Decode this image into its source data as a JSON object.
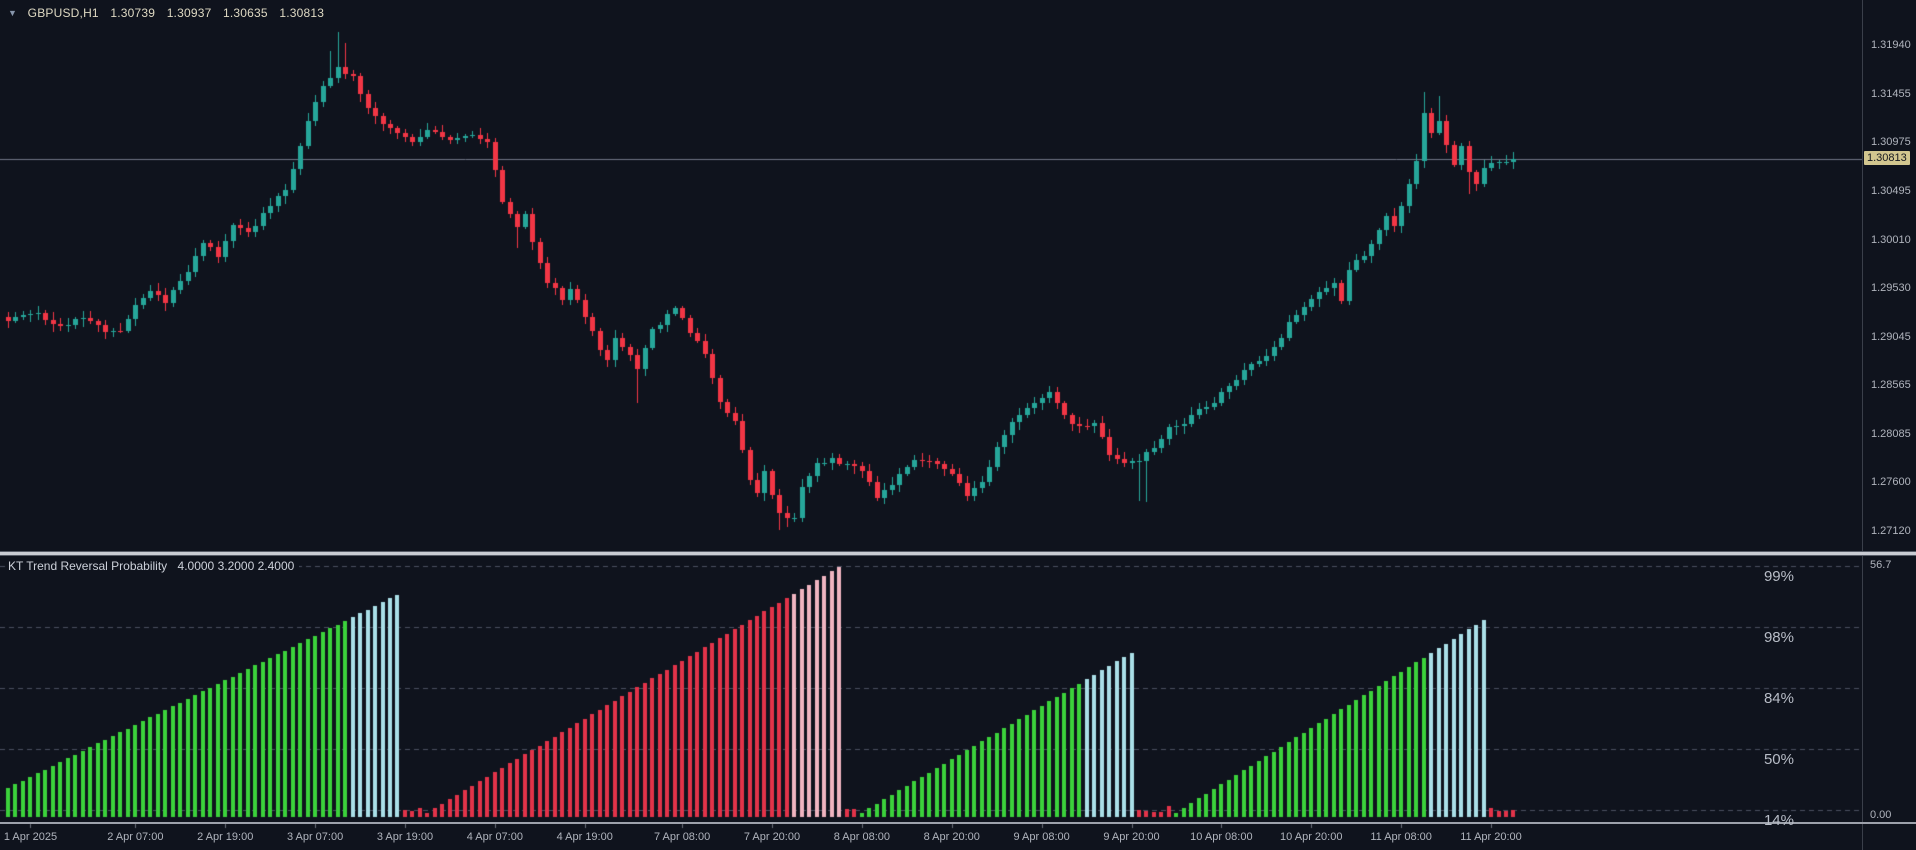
{
  "header": {
    "dropdown_icon": "▼",
    "symbol": "GBPUSD,H1",
    "open": "1.30739",
    "high": "1.30937",
    "low": "1.30635",
    "close": "1.30813"
  },
  "indicator": {
    "name": "KT Trend Reversal Probability",
    "params": "4.0000 3.2000 2.4000",
    "axis_max": "56.7",
    "axis_min": "0.00"
  },
  "price_axis": {
    "current_price_label": "1.30813"
  },
  "colors": {
    "background": "#0f131d",
    "axis_text": "#b0b4bd",
    "symbol_text": "#ded9c3",
    "price_line": "#6f7585",
    "price_tag_bg": "#d2c68f",
    "price_tag_text": "#15181f",
    "separator": "#c9ccd3",
    "level_dash": "#4a5060",
    "level_text": "#b8bdc7",
    "tick_mark": "#6b707b"
  },
  "chart_data": [
    {
      "type": "candlestick",
      "title": "GBPUSD,H1",
      "panel": "price",
      "current_price": 1.30813,
      "ylim": [
        1.2692,
        1.32386
      ],
      "y_ticks": [
        "1.31940",
        "1.31455",
        "1.30975",
        "1.30495",
        "1.30010",
        "1.29530",
        "1.29045",
        "1.28565",
        "1.28085",
        "1.27600",
        "1.27120"
      ],
      "n_candles": 202,
      "x_labels": [
        {
          "i": 3,
          "t": "1 Apr 2025"
        },
        {
          "i": 17,
          "t": "2 Apr 07:00"
        },
        {
          "i": 29,
          "t": "2 Apr 19:00"
        },
        {
          "i": 41,
          "t": "3 Apr 07:00"
        },
        {
          "i": 53,
          "t": "3 Apr 19:00"
        },
        {
          "i": 65,
          "t": "4 Apr 07:00"
        },
        {
          "i": 77,
          "t": "4 Apr 19:00"
        },
        {
          "i": 90,
          "t": "7 Apr 08:00"
        },
        {
          "i": 102,
          "t": "7 Apr 20:00"
        },
        {
          "i": 114,
          "t": "8 Apr 08:00"
        },
        {
          "i": 126,
          "t": "8 Apr 20:00"
        },
        {
          "i": 138,
          "t": "9 Apr 08:00"
        },
        {
          "i": 150,
          "t": "9 Apr 20:00"
        },
        {
          "i": 162,
          "t": "10 Apr 08:00"
        },
        {
          "i": 174,
          "t": "10 Apr 20:00"
        },
        {
          "i": 186,
          "t": "11 Apr 08:00"
        },
        {
          "i": 198,
          "t": "11 Apr 20:00"
        }
      ],
      "close_waypoints": [
        [
          0,
          1.2922
        ],
        [
          4,
          1.2928
        ],
        [
          7,
          1.2916
        ],
        [
          10,
          1.2924
        ],
        [
          13,
          1.2908
        ],
        [
          15,
          1.2912
        ],
        [
          17,
          1.2936
        ],
        [
          19,
          1.2948
        ],
        [
          21,
          1.294
        ],
        [
          24,
          1.297
        ],
        [
          26,
          1.2997
        ],
        [
          28,
          1.2986
        ],
        [
          30,
          1.3015
        ],
        [
          32,
          1.3006
        ],
        [
          35,
          1.3036
        ],
        [
          37,
          1.3052
        ],
        [
          38,
          1.307
        ],
        [
          40,
          1.3118
        ],
        [
          42,
          1.3154
        ],
        [
          44,
          1.3172
        ],
        [
          46,
          1.3162
        ],
        [
          47,
          1.3148
        ],
        [
          48,
          1.313
        ],
        [
          50,
          1.3118
        ],
        [
          52,
          1.3105
        ],
        [
          54,
          1.3098
        ],
        [
          56,
          1.311
        ],
        [
          58,
          1.3102
        ],
        [
          60,
          1.31
        ],
        [
          62,
          1.3103
        ],
        [
          64,
          1.3097
        ],
        [
          65,
          1.3068
        ],
        [
          66,
          1.304
        ],
        [
          68,
          1.3015
        ],
        [
          69,
          1.3027
        ],
        [
          70,
          1.2997
        ],
        [
          72,
          1.296
        ],
        [
          74,
          1.2942
        ],
        [
          75,
          1.2954
        ],
        [
          77,
          1.2924
        ],
        [
          79,
          1.2893
        ],
        [
          80,
          1.2881
        ],
        [
          81,
          1.2905
        ],
        [
          83,
          1.2887
        ],
        [
          84,
          1.2875
        ],
        [
          86,
          1.2911
        ],
        [
          88,
          1.2926
        ],
        [
          89,
          1.2933
        ],
        [
          91,
          1.2911
        ],
        [
          93,
          1.2887
        ],
        [
          95,
          1.2838
        ],
        [
          97,
          1.282
        ],
        [
          99,
          1.2765
        ],
        [
          100,
          1.2747
        ],
        [
          101,
          1.2771
        ],
        [
          103,
          1.2729
        ],
        [
          105,
          1.2723
        ],
        [
          106,
          1.2753
        ],
        [
          108,
          1.2777
        ],
        [
          110,
          1.2783
        ],
        [
          112,
          1.2777
        ],
        [
          114,
          1.2771
        ],
        [
          116,
          1.2747
        ],
        [
          118,
          1.2759
        ],
        [
          120,
          1.2777
        ],
        [
          122,
          1.2783
        ],
        [
          124,
          1.2777
        ],
        [
          126,
          1.2771
        ],
        [
          128,
          1.2747
        ],
        [
          130,
          1.2759
        ],
        [
          132,
          1.2795
        ],
        [
          134,
          1.282
        ],
        [
          136,
          1.2833
        ],
        [
          138,
          1.2845
        ],
        [
          139,
          1.2851
        ],
        [
          141,
          1.2826
        ],
        [
          143,
          1.2814
        ],
        [
          145,
          1.282
        ],
        [
          147,
          1.2789
        ],
        [
          149,
          1.2777
        ],
        [
          151,
          1.2783
        ],
        [
          153,
          1.2795
        ],
        [
          155,
          1.2814
        ],
        [
          157,
          1.282
        ],
        [
          159,
          1.2833
        ],
        [
          161,
          1.2839
        ],
        [
          163,
          1.2857
        ],
        [
          165,
          1.2869
        ],
        [
          167,
          1.2881
        ],
        [
          169,
          1.2893
        ],
        [
          171,
          1.2918
        ],
        [
          173,
          1.2936
        ],
        [
          175,
          1.2948
        ],
        [
          177,
          1.296
        ],
        [
          178,
          1.2942
        ],
        [
          179,
          1.2972
        ],
        [
          181,
          1.2985
        ],
        [
          183,
          1.3009
        ],
        [
          184,
          1.3027
        ],
        [
          185,
          1.3015
        ],
        [
          186,
          1.3033
        ],
        [
          187,
          1.3057
        ],
        [
          188,
          1.3081
        ],
        [
          189,
          1.3124
        ],
        [
          190,
          1.3105
        ],
        [
          191,
          1.3118
        ],
        [
          192,
          1.3093
        ],
        [
          193,
          1.3075
        ],
        [
          194,
          1.3093
        ],
        [
          195,
          1.307
        ],
        [
          196,
          1.3057
        ],
        [
          197,
          1.307
        ],
        [
          198,
          1.3076
        ],
        [
          200,
          1.308
        ],
        [
          201,
          1.30813
        ]
      ],
      "wick_overrides": [
        {
          "i": 43,
          "high": 1.3188
        },
        {
          "i": 44,
          "high": 1.3207
        },
        {
          "i": 45,
          "high": 1.3196
        },
        {
          "i": 68,
          "low": 1.2993
        },
        {
          "i": 84,
          "low": 1.2839
        },
        {
          "i": 103,
          "low": 1.2713
        },
        {
          "i": 104,
          "low": 1.2716
        },
        {
          "i": 151,
          "low": 1.2742
        },
        {
          "i": 152,
          "low": 1.2741
        },
        {
          "i": 189,
          "high": 1.3147
        },
        {
          "i": 191,
          "high": 1.3143
        },
        {
          "i": 195,
          "low": 1.3046
        }
      ],
      "up_color": "#26a69a",
      "down_color": "#f23645"
    },
    {
      "type": "bar",
      "title": "KT Trend Reversal Probability",
      "params": "4.0000 3.2000 2.4000",
      "panel": "indicator",
      "ylim": [
        0,
        56.7
      ],
      "axis_labels": {
        "max": "56.7",
        "min": "0.00"
      },
      "levels": [
        {
          "label": "99%",
          "value": 56.5
        },
        {
          "label": "98%",
          "value": 42.8
        },
        {
          "label": "84%",
          "value": 29.0
        },
        {
          "label": "50%",
          "value": 15.3
        },
        {
          "label": "14%",
          "value": 1.6
        }
      ],
      "segments": [
        {
          "kind": "ramp",
          "from": 0,
          "to": 52,
          "v0": 6.5,
          "v1": 50.0,
          "trend": "bull",
          "light_tail": 7
        },
        {
          "kind": "stubs",
          "from": 53,
          "to": 55,
          "trend": "bear"
        },
        {
          "kind": "ramp",
          "from": 56,
          "to": 111,
          "v0": 1.0,
          "v1": 56.3,
          "trend": "bear",
          "light_tail": 7
        },
        {
          "kind": "stubs",
          "from": 112,
          "to": 113,
          "trend": "bear"
        },
        {
          "kind": "ramp",
          "from": 114,
          "to": 150,
          "v0": 1.0,
          "v1": 37.0,
          "trend": "bull",
          "light_tail": 7
        },
        {
          "kind": "stubs",
          "from": 151,
          "to": 155,
          "trend": "bear"
        },
        {
          "kind": "ramp",
          "from": 156,
          "to": 197,
          "v0": 1.0,
          "v1": 44.3,
          "trend": "bull",
          "light_tail": 8
        },
        {
          "kind": "stubs",
          "from": 198,
          "to": 201,
          "trend": "bear"
        }
      ],
      "colors": {
        "bull": "#3bd23b",
        "bull_tail": "#aadfe8",
        "bear": "#e23349",
        "bear_tail": "#f0b4c0"
      }
    }
  ]
}
